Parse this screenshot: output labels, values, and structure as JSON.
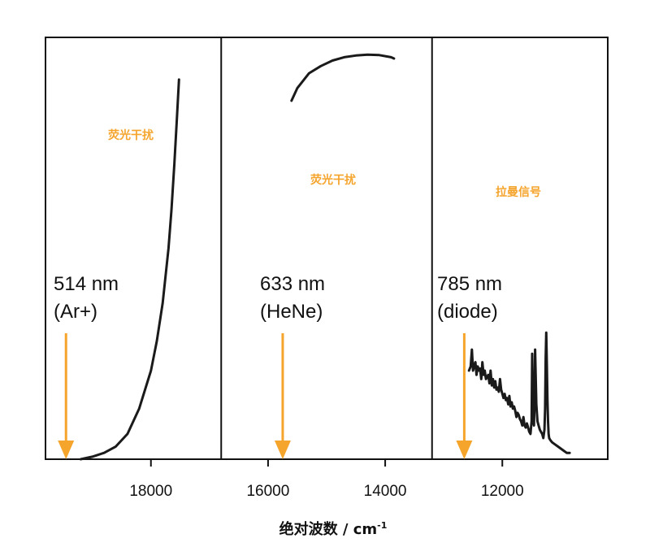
{
  "colors": {
    "accent": "#F5A42C",
    "line": "#1a1a1a"
  },
  "chart_data": {
    "type": "line",
    "title": "",
    "xlabel": "绝对波数 / cm",
    "xlabel_sup": "-1",
    "ylabel": "",
    "x_reversed": true,
    "xlim": [
      19800,
      10200
    ],
    "ylim": [
      0,
      100
    ],
    "x_ticks": [
      18000,
      16000,
      14000,
      12000
    ],
    "x_tick_labels": [
      "18000",
      "16000",
      "14000",
      "12000"
    ],
    "grid": false,
    "legend": "none",
    "panels": [
      {
        "laser_wavelength": "514 nm",
        "laser_source": "(Ar+)",
        "excitation_wavenumber": 19450,
        "annotation": "荧光干扰",
        "xlim": [
          19800,
          16800
        ],
        "series": [
          {
            "x": [
              19200,
              19000,
              18800,
              18600,
              18400,
              18200,
              18000,
              17900,
              17800,
              17700,
              17650,
              17600,
              17560,
              17520
            ],
            "y": [
              0,
              0.6,
              1.5,
              3,
              6,
              12,
              21,
              28,
              37,
              50,
              59,
              70,
              80,
              90
            ]
          }
        ]
      },
      {
        "laser_wavelength": "633 nm",
        "laser_source": "(HeNe)",
        "excitation_wavenumber": 15750,
        "annotation": "荧光干扰",
        "xlim": [
          16800,
          13200
        ],
        "series": [
          {
            "x": [
              15600,
              15500,
              15300,
              15100,
              14900,
              14700,
              14500,
              14300,
              14100,
              13900,
              13850
            ],
            "y": [
              85,
              88,
              91.5,
              93.2,
              94.5,
              95.3,
              95.7,
              95.9,
              95.8,
              95.3,
              95
            ]
          }
        ]
      },
      {
        "laser_wavelength": "785 nm",
        "laser_source": "(diode)",
        "excitation_wavenumber": 12650,
        "annotation": "拉曼信号",
        "xlim": [
          13200,
          10200
        ],
        "series": [
          {
            "x": [
              12570,
              12540,
              12520,
              12500,
              12480,
              12460,
              12440,
              12420,
              12400,
              12380,
              12360,
              12340,
              12320,
              12300,
              12280,
              12260,
              12240,
              12220,
              12200,
              12180,
              12160,
              12140,
              12120,
              12100,
              12080,
              12060,
              12040,
              12020,
              12000,
              11980,
              11960,
              11940,
              11920,
              11900,
              11880,
              11860,
              11840,
              11820,
              11800,
              11780,
              11760,
              11740,
              11720,
              11700,
              11680,
              11660,
              11640,
              11620,
              11600,
              11580,
              11560,
              11540,
              11520,
              11500,
              11490,
              11480,
              11470,
              11460,
              11450,
              11440,
              11420,
              11400,
              11380,
              11360,
              11340,
              11320,
              11300,
              11280,
              11270,
              11260,
              11250,
              11240,
              11230,
              11220,
              11210,
              11200,
              11180,
              11150,
              11100,
              11050,
              11000,
              10950,
              10900,
              10850
            ],
            "y": [
              21,
              22,
              26,
              21,
              22,
              23,
              20,
              22,
              21,
              21.5,
              19,
              23,
              20,
              21,
              19,
              19.5,
              20,
              18,
              21,
              17.5,
              19,
              17,
              18.5,
              16.5,
              17,
              16,
              19,
              16.5,
              15.5,
              14.5,
              15.5,
              14,
              14.5,
              13,
              15,
              12.5,
              13.5,
              12,
              12.5,
              11.5,
              10,
              11,
              10.5,
              9.5,
              9,
              8,
              10,
              8,
              7.5,
              8.5,
              7.5,
              6.5,
              6,
              9,
              25,
              14,
              9,
              8,
              14,
              26,
              13,
              9,
              8,
              7,
              6.5,
              6,
              5,
              7,
              12,
              24,
              30,
              23,
              14,
              9,
              6,
              5,
              4.5,
              4,
              3.5,
              3,
              2.5,
              2,
              1.5,
              1.5
            ]
          }
        ]
      }
    ]
  }
}
